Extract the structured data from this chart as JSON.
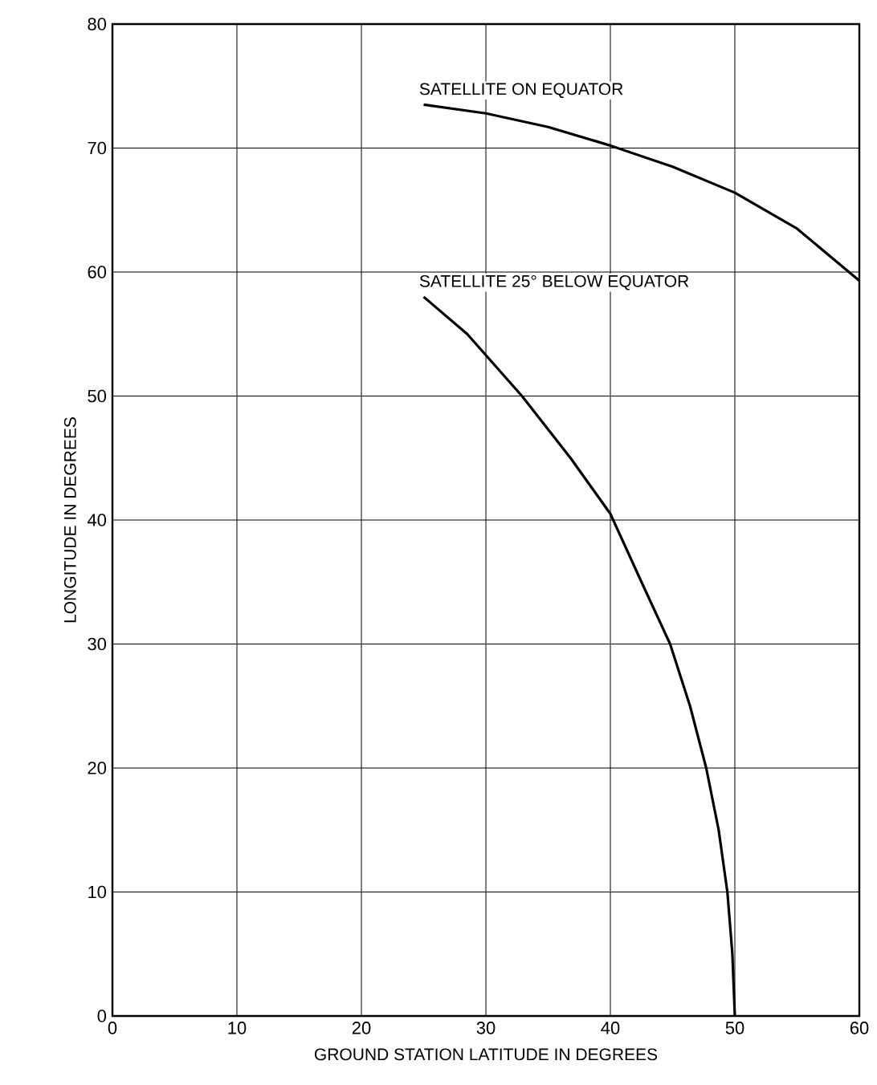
{
  "chart_data": {
    "type": "line",
    "xlabel": "GROUND STATION LATITUDE IN DEGREES",
    "ylabel": "LONGITUDE IN DEGREES",
    "xlim": [
      0,
      60
    ],
    "ylim": [
      0,
      80
    ],
    "xticks": [
      0,
      10,
      20,
      30,
      40,
      50,
      60
    ],
    "yticks": [
      0,
      10,
      20,
      30,
      40,
      50,
      60,
      70,
      80
    ],
    "grid": true,
    "legend": false,
    "marker": "none",
    "line_style": "solid",
    "series": [
      {
        "name": "SATELLITE ON EQUATOR",
        "color": "#000000",
        "x": [
          25,
          30,
          35,
          40,
          45,
          50,
          55,
          60
        ],
        "values": [
          73.5,
          72.8,
          71.7,
          70.2,
          68.5,
          66.4,
          63.5,
          59.3
        ]
      },
      {
        "name": "SATELLITE 25° BELOW EQUATOR",
        "color": "#000000",
        "x": [
          25,
          28.5,
          32.9,
          36.8,
          40,
          42.5,
          44.8,
          46.4,
          47.7,
          48.7,
          49.4,
          49.8,
          50
        ],
        "values": [
          58,
          55,
          50,
          45,
          40.5,
          35,
          30,
          25,
          20,
          15,
          10,
          5,
          0
        ]
      }
    ]
  }
}
